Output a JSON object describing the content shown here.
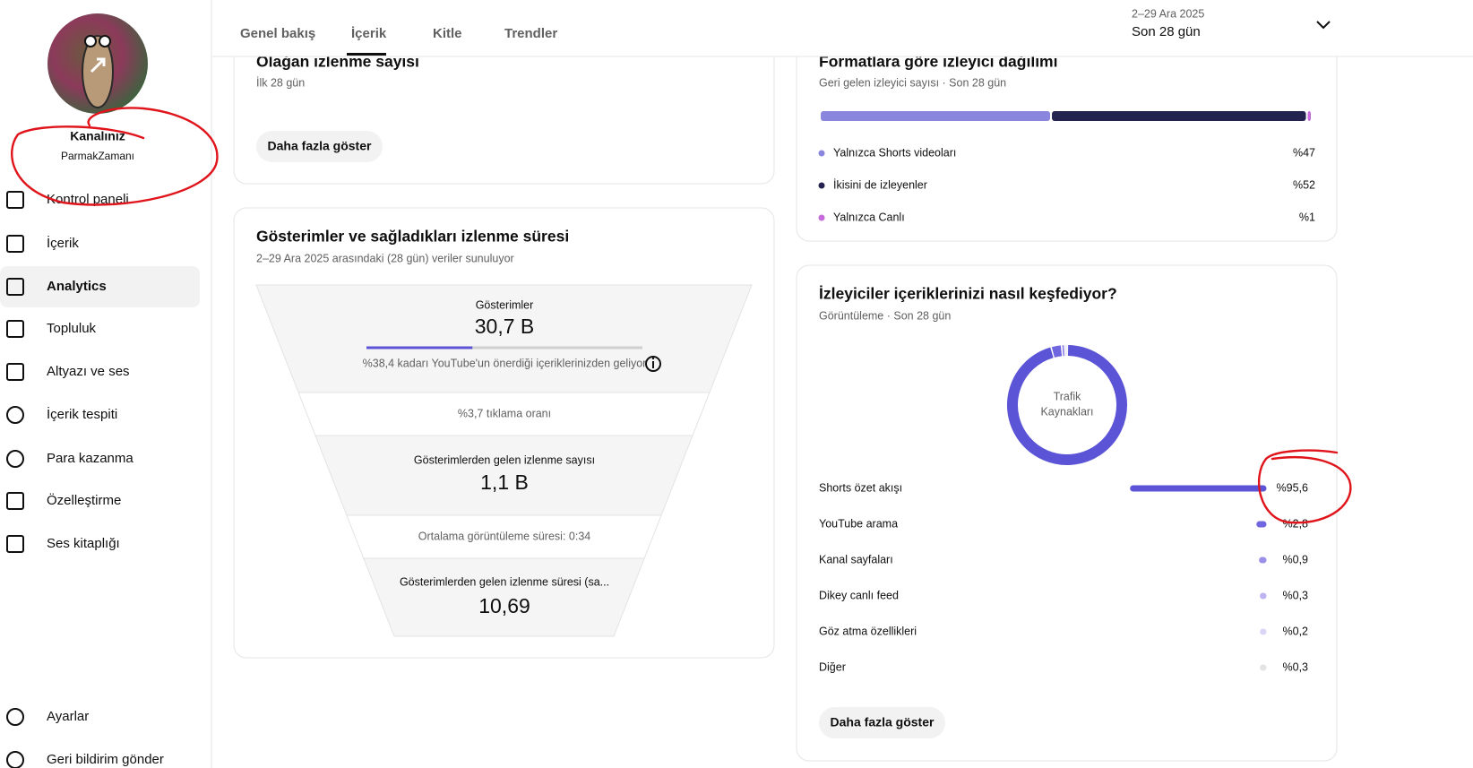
{
  "sidebar": {
    "channel_title": "Kanalınız",
    "channel_name": "ParmakZamanı",
    "nav": [
      "Kontrol paneli",
      "İçerik",
      "Analytics",
      "Topluluk",
      "Altyazı ve ses",
      "İçerik tespiti",
      "Para kazanma",
      "Özelleştirme",
      "Ses kitaplığı"
    ],
    "footer": [
      "Ayarlar",
      "Geri bildirim gönder"
    ]
  },
  "tabs": [
    "Genel bakış",
    "İçerik",
    "Kitle",
    "Trendler"
  ],
  "date_range": {
    "dates": "2–29 Ara 2025",
    "label": "Son 28 gün"
  },
  "organic_card": {
    "title": "Olağan izlenme sayısı",
    "subtitle": "İlk 28 gün",
    "button": "Daha fazla göster"
  },
  "funnel_card": {
    "title": "Gösterimler ve sağladıkları izlenme süresi",
    "subtitle": "2–29 Ara 2025 arasındaki (28 gün) veriler sunuluyor",
    "impressions": {
      "label": "Gösterimler",
      "value": "30,7 B",
      "recommended_share": 38.4,
      "note": "%38,4 kadarı YouTube'un önerdiği içeriklerinizden geliyor"
    },
    "ctr": "%3,7 tıklama oranı",
    "views": {
      "label": "Gösterimlerden gelen izlenme sayısı",
      "value": "1,1 B"
    },
    "avg_duration": "Ortalama görüntüleme süresi: 0:34",
    "watch_time": {
      "label": "Gösterimlerden gelen izlenme süresi (sa...",
      "value": "10,69"
    }
  },
  "format_card": {
    "title": "Formatlara göre izleyici dağılımı",
    "subtitle": "Geri gelen izleyici sayısı · Son 28 gün",
    "items": [
      {
        "label": "Yalnızca Shorts videoları",
        "value": 47,
        "value_label": "%47",
        "color": "#8b86dd"
      },
      {
        "label": "İkisini de izleyenler",
        "value": 52,
        "value_label": "%52",
        "color": "#24234f"
      },
      {
        "label": "Yalnızca Canlı",
        "value": 1,
        "value_label": "%1",
        "color": "#c76bdc"
      }
    ]
  },
  "traffic_card": {
    "title": "İzleyiciler içeriklerinizi nasıl keşfediyor?",
    "subtitle": "Görüntüleme · Son 28 gün",
    "center_label": [
      "Trafik",
      "Kaynakları"
    ],
    "items": [
      {
        "label": "Shorts özet akışı",
        "value": 95.6,
        "value_label": "%95,6",
        "color": "#5b54d6"
      },
      {
        "label": "YouTube arama",
        "value": 2.8,
        "value_label": "%2,8",
        "color": "#6f66e0"
      },
      {
        "label": "Kanal sayfaları",
        "value": 0.9,
        "value_label": "%0,9",
        "color": "#9a90e8"
      },
      {
        "label": "Dikey canlı feed",
        "value": 0.3,
        "value_label": "%0,3",
        "color": "#bbb4f0"
      },
      {
        "label": "Göz atma özellikleri",
        "value": 0.2,
        "value_label": "%0,2",
        "color": "#d9d5f6"
      },
      {
        "label": "Diğer",
        "value": 0.3,
        "value_label": "%0,3",
        "color": "#e4e4e4"
      }
    ],
    "button": "Daha fazla göster"
  }
}
